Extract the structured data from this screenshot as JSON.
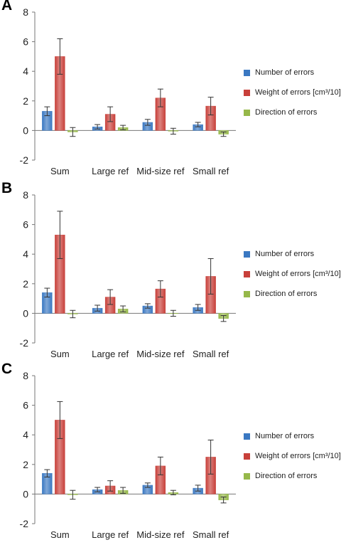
{
  "colors": {
    "number": "#3a78c2",
    "weight": "#c8403a",
    "direction": "#96b84a",
    "axis": "#777777"
  },
  "chart_data": [
    {
      "panel_label": "A",
      "type": "bar",
      "categories": [
        "Sum",
        "Large ref",
        "Mid-size ref",
        "Small ref"
      ],
      "ylim": [
        -2,
        8
      ],
      "yticks": [
        -2,
        0,
        2,
        4,
        6,
        8
      ],
      "series": [
        {
          "name": "Number of errors",
          "values": [
            1.3,
            0.25,
            0.55,
            0.4
          ],
          "errors": [
            0.3,
            0.15,
            0.2,
            0.15
          ]
        },
        {
          "name": "Weight of errors [cm³/10]",
          "values": [
            5.0,
            1.1,
            2.2,
            1.65
          ],
          "errors": [
            1.2,
            0.5,
            0.6,
            0.6
          ]
        },
        {
          "name": "Direction of errors",
          "values": [
            -0.1,
            0.2,
            -0.05,
            -0.25
          ],
          "errors": [
            0.3,
            0.15,
            0.2,
            0.15
          ]
        }
      ]
    },
    {
      "panel_label": "B",
      "type": "bar",
      "categories": [
        "Sum",
        "Large ref",
        "Mid-size ref",
        "Small ref"
      ],
      "ylim": [
        -2,
        8
      ],
      "yticks": [
        -2,
        0,
        2,
        4,
        6,
        8
      ],
      "series": [
        {
          "name": "Number of errors",
          "values": [
            1.4,
            0.35,
            0.5,
            0.4
          ],
          "errors": [
            0.3,
            0.2,
            0.15,
            0.2
          ]
        },
        {
          "name": "Weight of errors [cm³/10]",
          "values": [
            5.3,
            1.1,
            1.65,
            2.5
          ],
          "errors": [
            1.6,
            0.5,
            0.55,
            1.2
          ]
        },
        {
          "name": "Direction of errors",
          "values": [
            -0.05,
            0.3,
            0.0,
            -0.35
          ],
          "errors": [
            0.25,
            0.2,
            0.2,
            0.2
          ]
        }
      ]
    },
    {
      "panel_label": "C",
      "type": "bar",
      "categories": [
        "Sum",
        "Large ref",
        "Mid-size ref",
        "Small ref"
      ],
      "ylim": [
        -2,
        8
      ],
      "yticks": [
        -2,
        0,
        2,
        4,
        6,
        8
      ],
      "series": [
        {
          "name": "Number of errors",
          "values": [
            1.4,
            0.3,
            0.6,
            0.4
          ],
          "errors": [
            0.25,
            0.15,
            0.15,
            0.2
          ]
        },
        {
          "name": "Weight of errors [cm³/10]",
          "values": [
            5.0,
            0.55,
            1.9,
            2.5
          ],
          "errors": [
            1.25,
            0.35,
            0.6,
            1.15
          ]
        },
        {
          "name": "Direction of errors",
          "values": [
            -0.05,
            0.25,
            0.1,
            -0.4
          ],
          "errors": [
            0.3,
            0.2,
            0.15,
            0.2
          ]
        }
      ]
    }
  ]
}
